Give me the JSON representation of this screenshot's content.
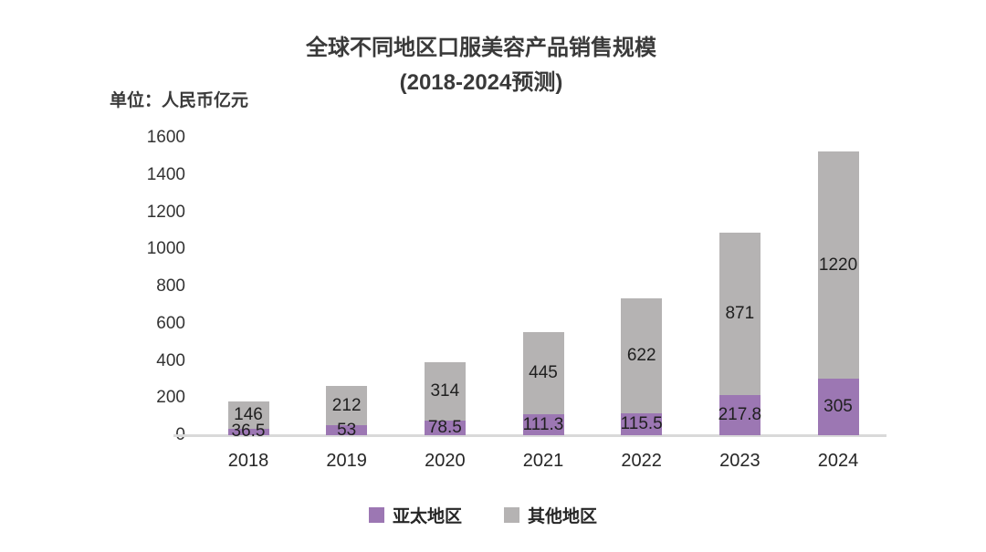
{
  "title": {
    "line1": "全球不同地区口服美容产品销售规模",
    "line2": "(2018-2024预测)"
  },
  "unit_label": "单位：人民币亿元",
  "colors": {
    "asia_pacific": "#9c77b3",
    "other_regions": "#b5b3b3",
    "axis_line": "#d9d9d9",
    "text": "#262626"
  },
  "chart_data": {
    "type": "bar",
    "stacked": true,
    "title": "全球不同地区口服美容产品销售规模 (2018-2024预测)",
    "ylabel": "单位：人民币亿元",
    "categories": [
      "2018",
      "2019",
      "2020",
      "2021",
      "2022",
      "2023",
      "2024"
    ],
    "series": [
      {
        "name": "亚太地区",
        "color": "#9c77b3",
        "values": [
          36.5,
          53,
          78.5,
          111.3,
          115.5,
          217.8,
          305
        ]
      },
      {
        "name": "其他地区",
        "color": "#b5b3b3",
        "values": [
          146,
          212,
          314,
          445,
          622,
          871,
          1220
        ]
      }
    ],
    "ylim": [
      0,
      1600
    ],
    "yticks": [
      0,
      200,
      400,
      600,
      800,
      1000,
      1200,
      1400,
      1600
    ],
    "grid": false,
    "legend_position": "bottom"
  }
}
